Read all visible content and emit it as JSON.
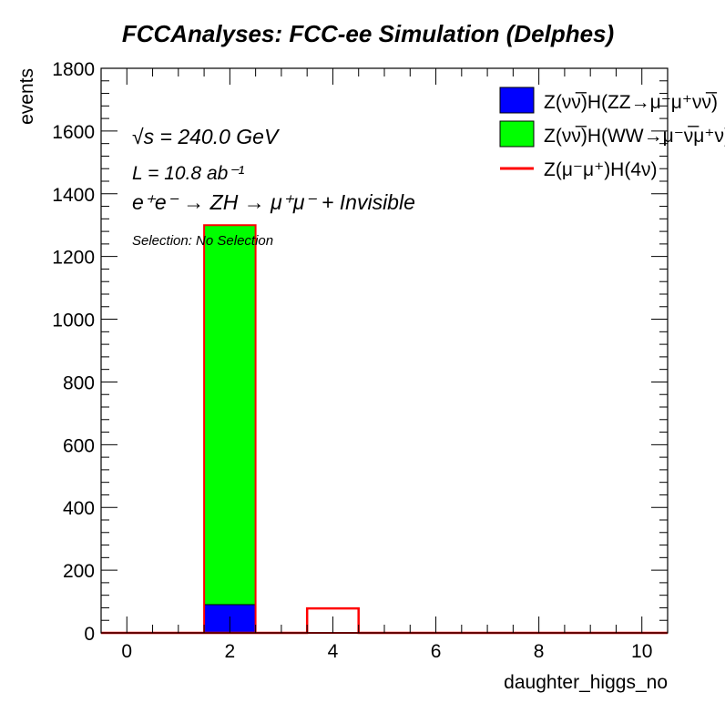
{
  "chart_data": {
    "type": "bar",
    "title": "FCCAnalyses: FCC-ee Simulation (Delphes)",
    "xlabel": "daughter_higgs_no",
    "ylabel": "events",
    "xlim": [
      -0.5,
      10.5
    ],
    "ylim": [
      0,
      1800
    ],
    "x_ticks": [
      0,
      2,
      4,
      6,
      8,
      10
    ],
    "y_ticks": [
      0,
      200,
      400,
      600,
      800,
      1000,
      1200,
      1400,
      1600,
      1800
    ],
    "bin_width": 1,
    "stacked": true,
    "bin_centers": [
      0,
      1,
      2,
      3,
      4,
      5,
      6,
      7,
      8,
      9,
      10
    ],
    "series": [
      {
        "name": "Z(νν̅)H(ZZ→μ⁻μ⁺νν̅)",
        "style": "filled",
        "color": "#0000ff",
        "values": [
          0,
          0,
          90,
          0,
          0,
          0,
          0,
          0,
          0,
          0,
          0
        ]
      },
      {
        "name": "Z(νν̅)H(WW→μ⁻ν̅μ⁺ν)",
        "style": "filled",
        "color": "#00ff00",
        "values": [
          0,
          0,
          1210,
          0,
          0,
          0,
          0,
          0,
          0,
          0,
          0
        ]
      },
      {
        "name": "Z(μ⁻μ⁺)H(4ν)",
        "style": "line",
        "color": "#ff0000",
        "values": [
          0,
          0,
          0,
          0,
          78,
          0,
          0,
          0,
          0,
          0,
          0
        ]
      }
    ],
    "grid": false,
    "legend_position": "top-right",
    "annotations": {
      "sqrt_s": "√s = 240.0 GeV",
      "lumi": "L = 10.8 ab⁻¹",
      "process": "e⁺e⁻ → ZH → μ⁺μ⁻ + Invisible",
      "selection": "Selection: No Selection"
    }
  }
}
